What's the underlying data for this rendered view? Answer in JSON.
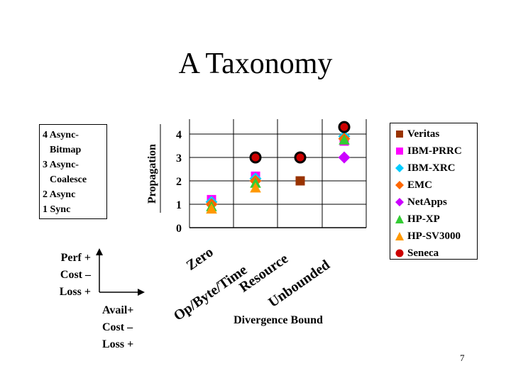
{
  "slide": {
    "title": "A Taxonomy",
    "page_number": "7",
    "sync_levels": [
      "4 Async-",
      "Bitmap",
      "3 Async-",
      "Coalesce",
      "2 Async",
      "1 Sync"
    ],
    "perf_axis": [
      "Perf +",
      "Cost –",
      "Loss +"
    ],
    "avail_axis": [
      "Avail+",
      "Cost –",
      "Loss +"
    ]
  },
  "chart_data": {
    "type": "scatter",
    "title": "",
    "xlabel": "Divergence Bound",
    "ylabel": "Propagation",
    "categories": [
      "Zero",
      "Op/Byte/Time",
      "Resource",
      "Unbounded"
    ],
    "x_tick_lines": [
      "Zero",
      "Op/Byte/Time",
      "Resource",
      "Unbounded"
    ],
    "y_ticks": [
      "0",
      "1",
      "2",
      "3",
      "4"
    ],
    "ylim": [
      0,
      4.4
    ],
    "grid": true,
    "legend_position": "right",
    "series": [
      {
        "name": "Veritas",
        "marker": "square",
        "color": "#993300",
        "points": [
          [
            2,
            2
          ]
        ]
      },
      {
        "name": "IBM-PRRC",
        "marker": "square",
        "color": "#ff00ff",
        "points": [
          [
            0,
            1.2
          ],
          [
            1,
            2.2
          ],
          [
            3,
            3.7
          ]
        ]
      },
      {
        "name": "IBM-XRC",
        "marker": "diamond",
        "color": "#00ccff",
        "points": [
          [
            0,
            1.1
          ],
          [
            1,
            2.1
          ],
          [
            3,
            3.9
          ]
        ]
      },
      {
        "name": "EMC",
        "marker": "diamond",
        "color": "#ff6600",
        "points": [
          [
            0,
            1.0
          ],
          [
            1,
            2.0
          ],
          [
            3,
            3.8
          ]
        ]
      },
      {
        "name": "NetApps",
        "marker": "diamond",
        "color": "#cc00ff",
        "points": [
          [
            3,
            3.0
          ]
        ]
      },
      {
        "name": "HP-XP",
        "marker": "triangle",
        "color": "#33cc33",
        "points": [
          [
            0,
            0.9
          ],
          [
            1,
            1.9
          ],
          [
            3,
            3.75
          ]
        ]
      },
      {
        "name": "HP-SV3000",
        "marker": "triangle",
        "color": "#ff9900",
        "points": [
          [
            0,
            0.8
          ],
          [
            1,
            1.7
          ]
        ]
      },
      {
        "name": "Seneca",
        "marker": "circle",
        "color": "#cc0000",
        "points": [
          [
            1,
            3.0
          ],
          [
            2,
            3.0
          ],
          [
            3,
            4.3
          ]
        ]
      }
    ]
  }
}
